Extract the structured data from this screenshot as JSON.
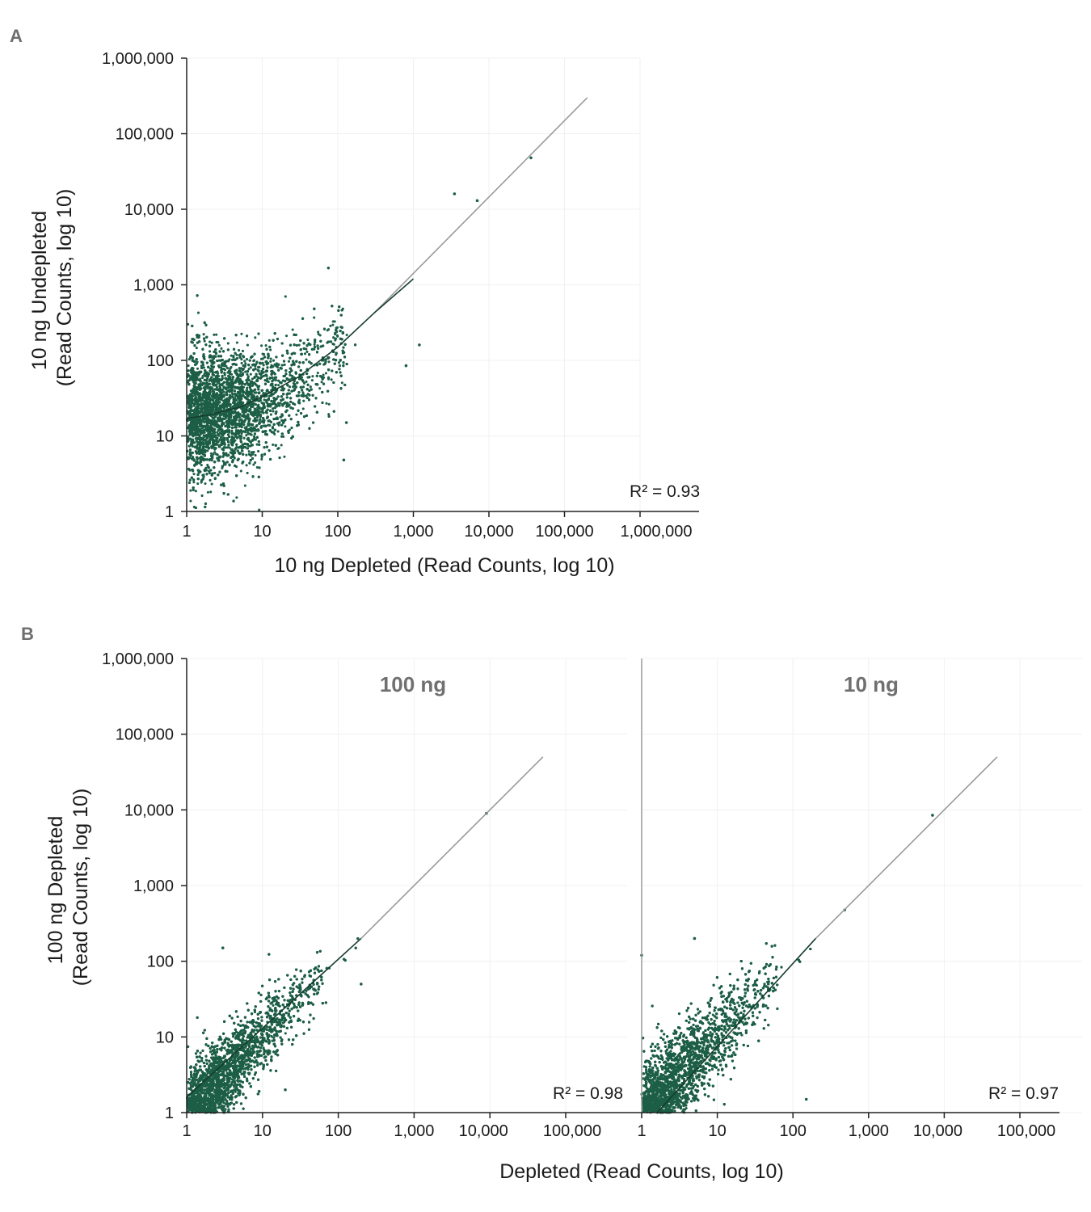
{
  "colors": {
    "point": "#1d5e47",
    "fit": "#153d2e",
    "identity": "#9a9a9a",
    "axis": "#222222",
    "grid": "#f0f0f0"
  },
  "chart_data": [
    {
      "panel": "A",
      "type": "scatter",
      "xlabel": "10 ng Depleted (Read Counts, log 10)",
      "ylabel_lines": [
        "10 ng Undepleted",
        "(Read Counts, log 10)"
      ],
      "xscale": "log",
      "yscale": "log",
      "xlim": [
        1,
        1000000
      ],
      "ylim": [
        1,
        1000000
      ],
      "xticks": [
        "1",
        "10",
        "100",
        "1,000",
        "10,000",
        "100,000",
        "1,000,000"
      ],
      "yticks": [
        "1",
        "10",
        "100",
        "1,000",
        "10,000",
        "100,000",
        "1,000,000"
      ],
      "annotation": "R² = 0.93",
      "identity_line": [
        [
          1,
          1
        ],
        [
          200000,
          300000
        ]
      ],
      "fit_curve": [
        [
          1,
          17
        ],
        [
          2,
          19
        ],
        [
          5,
          24
        ],
        [
          10,
          33
        ],
        [
          30,
          60
        ],
        [
          100,
          150
        ],
        [
          300,
          420
        ],
        [
          1000,
          1200
        ]
      ],
      "points_summary": {
        "n_approx": 9000,
        "x_range": [
          1,
          40000
        ],
        "y_range": [
          1,
          50000
        ],
        "spread_log10": 0.45
      },
      "outliers": [
        [
          36000,
          48000
        ],
        [
          3500,
          16000
        ],
        [
          7000,
          13000
        ],
        [
          1200,
          160
        ],
        [
          800,
          85
        ],
        [
          130,
          15
        ],
        [
          120,
          4.8
        ]
      ]
    },
    {
      "panel": "B",
      "type": "scatter",
      "facets": [
        "100 ng",
        "10 ng"
      ],
      "xlabel": "Depleted (Read Counts, log 10)",
      "ylabel_lines": [
        "100 ng Depleted",
        "(Read Counts, log 10)"
      ],
      "xscale": "log",
      "yscale": "log",
      "xlim": [
        1,
        100000
      ],
      "ylim": [
        1,
        1000000
      ],
      "xticks": [
        "1",
        "10",
        "100",
        "1,000",
        "10,000",
        "100,000"
      ],
      "yticks": [
        "1",
        "10",
        "100",
        "1,000",
        "10,000",
        "100,000",
        "1,000,000"
      ],
      "annotations": [
        "R² = 0.98",
        "R² = 0.97"
      ],
      "identity_line": [
        [
          1,
          1
        ],
        [
          50000,
          50000
        ]
      ],
      "points_summary": [
        {
          "facet": "100 ng",
          "n_approx": 9000,
          "x_range": [
            1,
            9000
          ],
          "y_range": [
            1,
            9000
          ],
          "spread_log10": 0.3
        },
        {
          "facet": "10 ng",
          "n_approx": 9000,
          "x_range": [
            1,
            7000
          ],
          "y_range": [
            1,
            9000
          ],
          "spread_log10": 0.33
        }
      ],
      "outliers": [
        [
          [
            9000,
            9000
          ],
          [
            3,
            150
          ],
          [
            200,
            50
          ],
          [
            20,
            2
          ]
        ],
        [
          [
            7000,
            8500
          ],
          [
            5,
            200
          ],
          [
            150,
            1.5
          ],
          [
            1,
            120
          ]
        ]
      ]
    }
  ]
}
